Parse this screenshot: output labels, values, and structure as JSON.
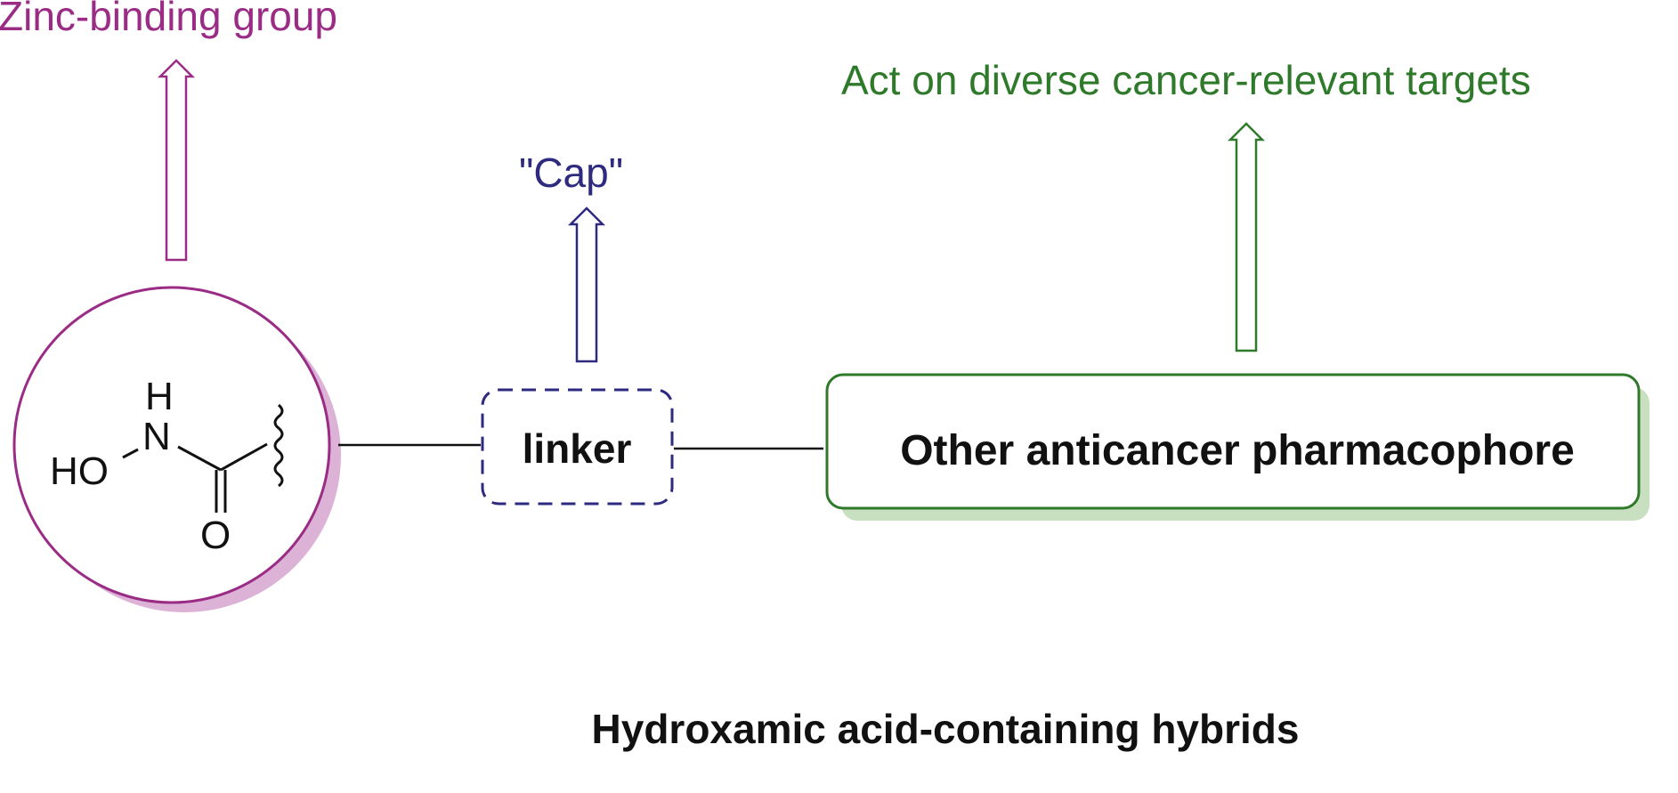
{
  "diagram": {
    "zinc_label": "Zinc-binding group",
    "cap_label": "\"Cap\"",
    "targets_label": "Act on diverse cancer-relevant targets",
    "linker_label": "linker",
    "pharmacophore_label": "Other anticancer pharmacophore",
    "caption": "Hydroxamic acid-containing hybrids",
    "structure": {
      "atom_h": "H",
      "atom_n": "N",
      "atom_ho": "HO",
      "atom_o": "O"
    }
  },
  "colors": {
    "zinc": "#9b2c86",
    "zinc_shadow": "#dcb3d6",
    "cap": "#2e2a80",
    "targets": "#2f7a2a",
    "pharma_shadow": "#c8e0c0",
    "ink": "#111111"
  }
}
